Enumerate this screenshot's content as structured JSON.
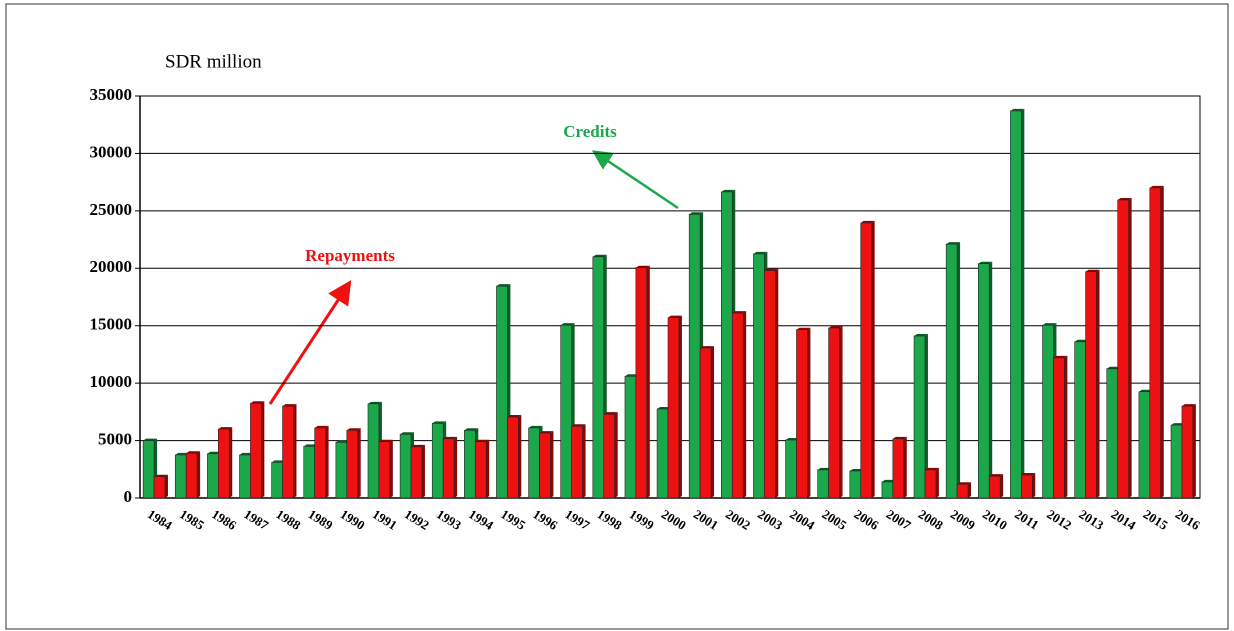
{
  "chart_data": {
    "type": "bar",
    "y_label": "SDR million",
    "categories": [
      "1984",
      "1985",
      "1986",
      "1987",
      "1988",
      "1989",
      "1990",
      "1991",
      "1992",
      "1993",
      "1994",
      "1995",
      "1996",
      "1997",
      "1998",
      "1999",
      "2000",
      "2001",
      "2002",
      "2003",
      "2004",
      "2005",
      "2006",
      "2007",
      "2008",
      "2009",
      "2010",
      "2011",
      "2012",
      "2013",
      "2014",
      "2015",
      "2016"
    ],
    "series": [
      {
        "name": "Credits",
        "color": "#1aa84a",
        "values": [
          5000,
          3750,
          3850,
          3750,
          3100,
          4500,
          4850,
          8200,
          5550,
          6500,
          5900,
          18450,
          6100,
          15050,
          21000,
          10600,
          7750,
          24700,
          26650,
          21250,
          5050,
          2450,
          2350,
          1400,
          14100,
          22100,
          20400,
          33700,
          15050,
          13600,
          11250,
          9250,
          6350
        ]
      },
      {
        "name": "Repayments",
        "color": "#ee1111",
        "values": [
          1850,
          3900,
          6000,
          8250,
          8000,
          6100,
          5900,
          4900,
          4450,
          5150,
          4900,
          7050,
          5650,
          6250,
          7300,
          20050,
          15700,
          13050,
          16100,
          19800,
          14650,
          14800,
          23950,
          5150,
          2450,
          1200,
          1900,
          2000,
          12200,
          19700,
          25950,
          27000,
          8000
        ]
      }
    ],
    "ylim": [
      0,
      35000
    ],
    "yticks": [
      0,
      5000,
      10000,
      15000,
      20000,
      25000,
      30000,
      35000
    ],
    "grid": true
  }
}
